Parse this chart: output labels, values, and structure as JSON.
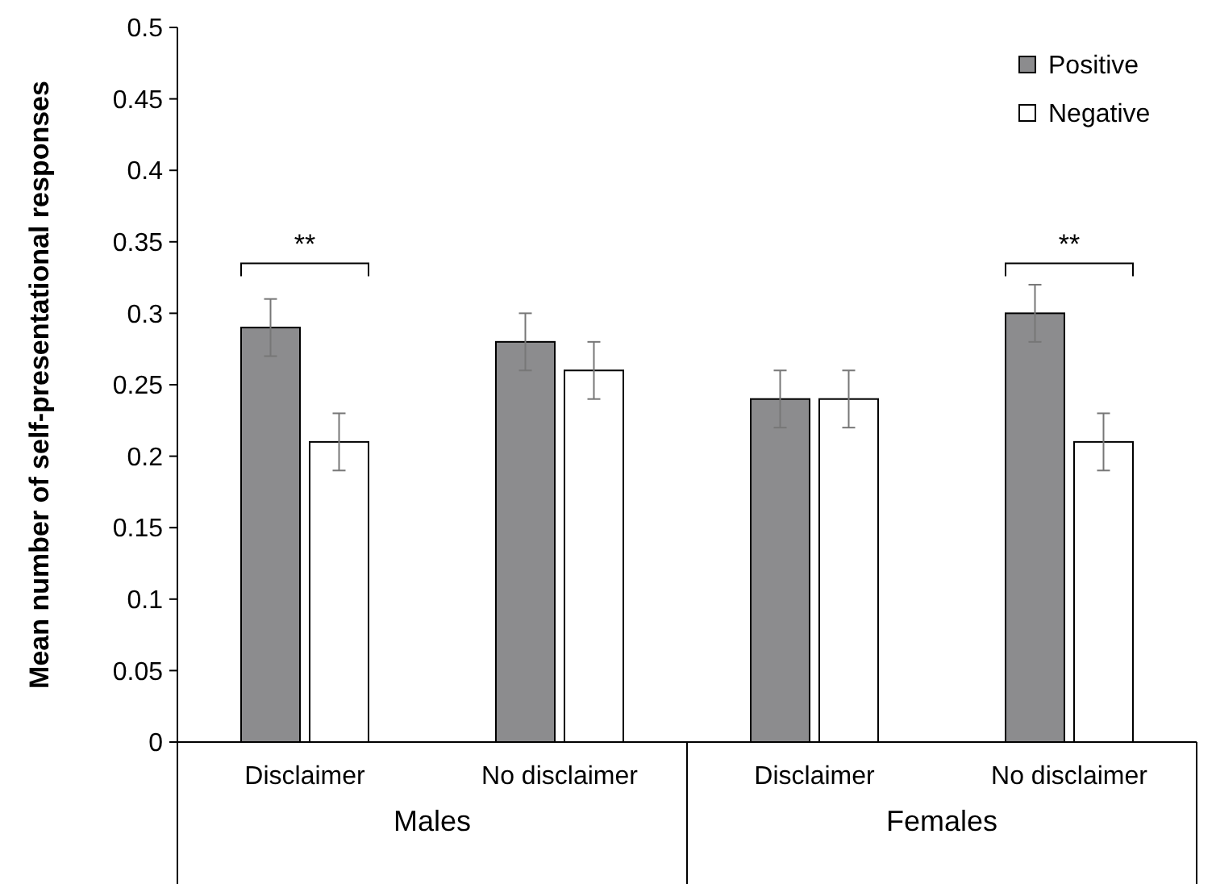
{
  "chart_data": {
    "type": "bar",
    "ylabel": "Mean number of self-presentational responses",
    "categories": [
      "Disclaimer",
      "No disclaimer",
      "Disclaimer",
      "No disclaimer"
    ],
    "series": [
      {
        "name": "Positive",
        "color": "#8c8c8e",
        "values": [
          0.29,
          0.28,
          0.24,
          0.3
        ],
        "errors": [
          0.02,
          0.02,
          0.02,
          0.02
        ]
      },
      {
        "name": "Negative",
        "color": "#ffffff",
        "values": [
          0.21,
          0.26,
          0.24,
          0.21
        ],
        "errors": [
          0.02,
          0.02,
          0.02,
          0.02
        ]
      }
    ],
    "ylim": [
      0,
      0.5
    ],
    "yticks": [
      0,
      0.05,
      0.1,
      0.15,
      0.2,
      0.25,
      0.3,
      0.35,
      0.4,
      0.45,
      0.5
    ],
    "annotations": [
      "**",
      "**",
      "Males",
      "Females"
    ],
    "grid": false,
    "legend": "top right"
  }
}
